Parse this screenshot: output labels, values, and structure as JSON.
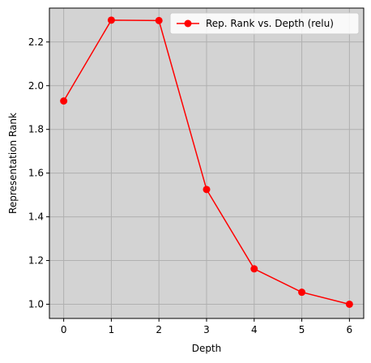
{
  "chart_data": {
    "type": "line",
    "title": "",
    "xlabel": "Depth",
    "ylabel": "Representation Rank",
    "xlim": [
      -0.3,
      6.3
    ],
    "ylim": [
      0.935,
      2.355
    ],
    "xticks": [
      0,
      1,
      2,
      3,
      4,
      5,
      6
    ],
    "xtick_labels": [
      "0",
      "1",
      "2",
      "3",
      "4",
      "5",
      "6"
    ],
    "yticks": [
      1.0,
      1.2,
      1.4,
      1.6,
      1.8,
      2.0,
      2.2
    ],
    "ytick_labels": [
      "1.0",
      "1.2",
      "1.4",
      "1.6",
      "1.8",
      "2.0",
      "2.2"
    ],
    "grid": true,
    "background_color": "#d3d3d3",
    "legend_position": "top-right",
    "series": [
      {
        "name": "Rep. Rank vs. Depth (relu)",
        "color": "#ff0000",
        "marker": "circle",
        "x": [
          0,
          1,
          2,
          3,
          4,
          5,
          6
        ],
        "y": [
          1.93,
          2.3,
          2.298,
          1.525,
          1.162,
          1.055,
          1.0
        ]
      }
    ]
  }
}
